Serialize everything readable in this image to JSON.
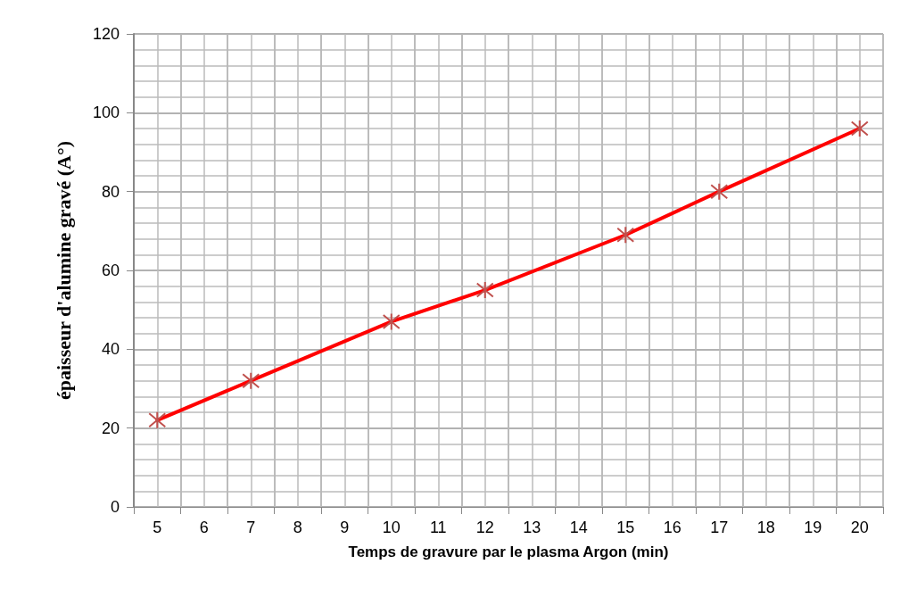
{
  "chart_data": {
    "type": "line",
    "xlabel": "Temps de gravure par le plasma Argon (min)",
    "ylabel": "épaisseur d'alumine gravé (A°)",
    "categories": [
      "5",
      "6",
      "7",
      "8",
      "9",
      "10",
      "11",
      "12",
      "13",
      "14",
      "15",
      "16",
      "17",
      "18",
      "19",
      "20"
    ],
    "series": [
      {
        "color": "#ff0000",
        "values": [
          22,
          null,
          32,
          null,
          null,
          47,
          null,
          55,
          null,
          null,
          69,
          null,
          80,
          null,
          null,
          96
        ]
      }
    ],
    "ylim": [
      0,
      120
    ],
    "yticks": [
      0,
      20,
      40,
      60,
      80,
      100,
      120
    ],
    "grid": true,
    "marker": "cross",
    "line_style": "solid"
  }
}
